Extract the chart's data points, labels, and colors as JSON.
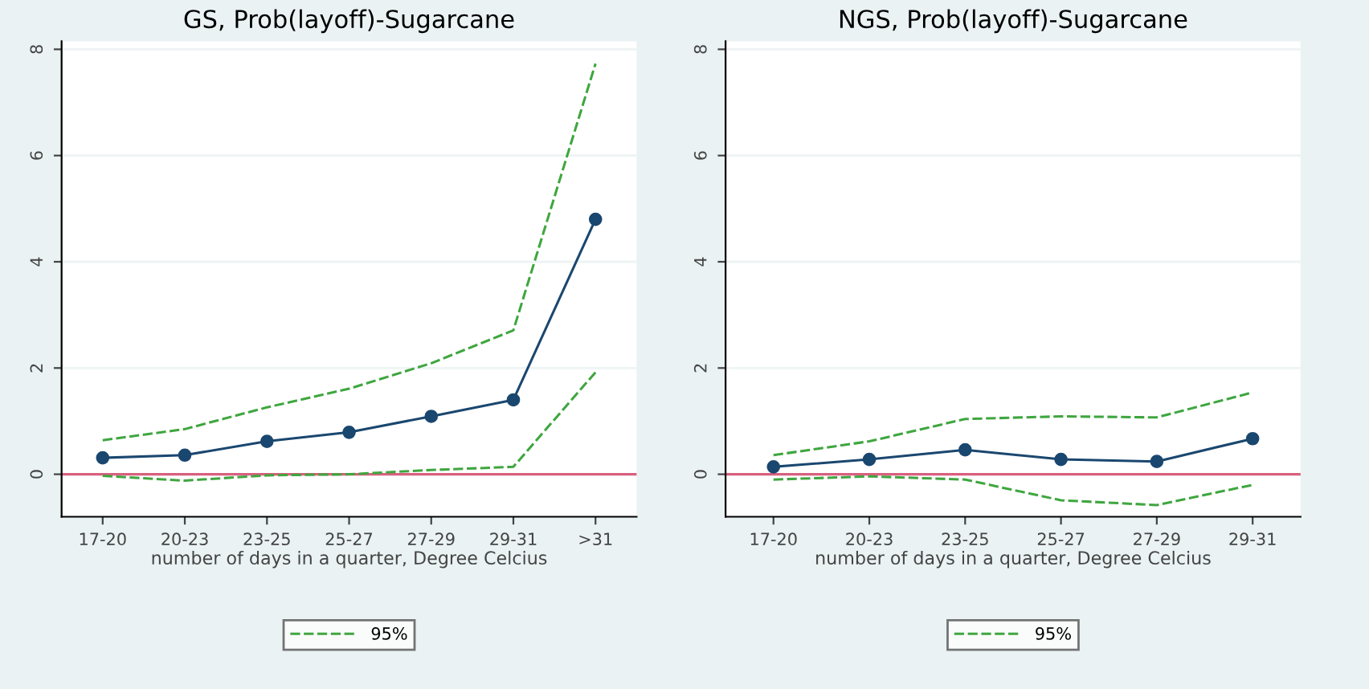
{
  "chart_data": [
    {
      "type": "line",
      "title": "GS, Prob(layoff)-Sugarcane",
      "xlabel": "number of days in a quarter, Degree Celcius",
      "categories": [
        "17-20",
        "20-23",
        "23-25",
        "25-27",
        "27-29",
        "29-31",
        ">31"
      ],
      "series": [
        {
          "color": "#1a476f",
          "marker": "circle",
          "line_style": "solid",
          "values": [
            0.31,
            0.36,
            0.62,
            0.79,
            1.09,
            1.4,
            4.8
          ]
        },
        {
          "name": "95%",
          "color": "#3fa63f",
          "marker": "none",
          "line_style": "dashed",
          "values": [
            0.64,
            0.85,
            1.26,
            1.61,
            2.09,
            2.71,
            7.73
          ]
        },
        {
          "color": "#3fa63f",
          "marker": "none",
          "line_style": "dashed",
          "values": [
            -0.03,
            -0.12,
            -0.02,
            0.0,
            0.08,
            0.14,
            1.92
          ]
        }
      ],
      "ylim": [
        -0.8,
        8.15
      ],
      "yticks": [
        0,
        2,
        4,
        6,
        8
      ],
      "grid": "y",
      "legend": "bottom",
      "ref_lines": [
        {
          "axis": "y",
          "value": 0,
          "color": "#d9607f"
        }
      ]
    },
    {
      "type": "line",
      "title": "NGS, Prob(layoff)-Sugarcane",
      "xlabel": "number of days in a quarter, Degree Celcius",
      "categories": [
        "17-20",
        "20-23",
        "23-25",
        "25-27",
        "27-29",
        "29-31"
      ],
      "series": [
        {
          "color": "#1a476f",
          "marker": "circle",
          "line_style": "solid",
          "values": [
            0.14,
            0.28,
            0.46,
            0.28,
            0.24,
            0.67
          ]
        },
        {
          "name": "95%",
          "color": "#3fa63f",
          "marker": "none",
          "line_style": "dashed",
          "values": [
            0.36,
            0.62,
            1.04,
            1.09,
            1.07,
            1.54
          ]
        },
        {
          "color": "#3fa63f",
          "marker": "none",
          "line_style": "dashed",
          "values": [
            -0.1,
            -0.04,
            -0.1,
            -0.49,
            -0.58,
            -0.2
          ]
        }
      ],
      "ylim": [
        -0.8,
        8.15
      ],
      "yticks": [
        0,
        2,
        4,
        6,
        8
      ],
      "grid": "y",
      "legend": "bottom",
      "ref_lines": [
        {
          "axis": "y",
          "value": 0,
          "color": "#d9607f"
        }
      ]
    }
  ]
}
